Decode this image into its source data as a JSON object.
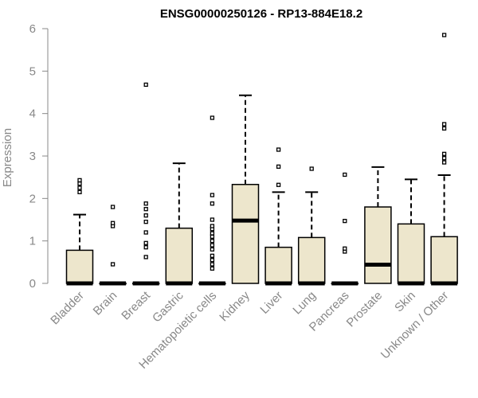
{
  "chart_data": {
    "type": "boxplot",
    "title": "ENSG00000250126 - RP13-884E18.2",
    "xlabel": "",
    "ylabel": "Expression",
    "ylim": [
      0,
      6
    ],
    "yticks": [
      "0",
      "1",
      "2",
      "3",
      "4",
      "5",
      "6"
    ],
    "grid": false,
    "legend": "none",
    "colors": {
      "box_fill": "#ede6cc",
      "stroke": "#000000",
      "axis_text": "#888888",
      "axis_line": "#888888"
    },
    "categories": [
      "Bladder",
      "Brain",
      "Breast",
      "Gastric",
      "Hematopoietic cells",
      "Kidney",
      "Liver",
      "Lung",
      "Pancreas",
      "Prostate",
      "Skin",
      "Unknown / Other"
    ],
    "boxes": [
      {
        "q1": 0,
        "median": 0,
        "q3": 0.78,
        "whisker_low": 0,
        "whisker_high": 1.62,
        "outliers": [
          2.15,
          2.25,
          2.35,
          2.43
        ]
      },
      {
        "q1": 0,
        "median": 0,
        "q3": 0,
        "whisker_low": 0,
        "whisker_high": 0,
        "outliers": [
          0.45,
          1.35,
          1.42,
          1.8
        ]
      },
      {
        "q1": 0,
        "median": 0,
        "q3": 0,
        "whisker_low": 0,
        "whisker_high": 0,
        "outliers": [
          0.62,
          0.85,
          0.95,
          1.2,
          1.45,
          1.6,
          1.75,
          1.88,
          4.68
        ]
      },
      {
        "q1": 0,
        "median": 0,
        "q3": 1.3,
        "whisker_low": 0,
        "whisker_high": 2.83,
        "outliers": []
      },
      {
        "q1": 0,
        "median": 0,
        "q3": 0,
        "whisker_low": 0,
        "whisker_high": 0,
        "outliers": [
          0.35,
          0.45,
          0.55,
          0.65,
          0.8,
          0.9,
          1.0,
          1.1,
          1.18,
          1.28,
          1.35,
          1.5,
          1.88,
          2.08,
          3.9
        ]
      },
      {
        "q1": 0,
        "median": 1.48,
        "q3": 2.33,
        "whisker_low": 0,
        "whisker_high": 4.43,
        "outliers": []
      },
      {
        "q1": 0,
        "median": 0,
        "q3": 0.85,
        "whisker_low": 0,
        "whisker_high": 2.15,
        "outliers": [
          2.32,
          2.75,
          3.15
        ]
      },
      {
        "q1": 0,
        "median": 0,
        "q3": 1.08,
        "whisker_low": 0,
        "whisker_high": 2.15,
        "outliers": [
          2.7
        ]
      },
      {
        "q1": 0,
        "median": 0,
        "q3": 0,
        "whisker_low": 0,
        "whisker_high": 0,
        "outliers": [
          0.75,
          0.82,
          1.47,
          2.56
        ]
      },
      {
        "q1": 0,
        "median": 0.44,
        "q3": 1.8,
        "whisker_low": 0,
        "whisker_high": 2.74,
        "outliers": []
      },
      {
        "q1": 0,
        "median": 0,
        "q3": 1.4,
        "whisker_low": 0,
        "whisker_high": 2.45,
        "outliers": []
      },
      {
        "q1": 0,
        "median": 0,
        "q3": 1.1,
        "whisker_low": 0,
        "whisker_high": 2.55,
        "outliers": [
          2.85,
          2.95,
          3.05,
          3.65,
          3.75,
          5.85
        ]
      }
    ]
  }
}
